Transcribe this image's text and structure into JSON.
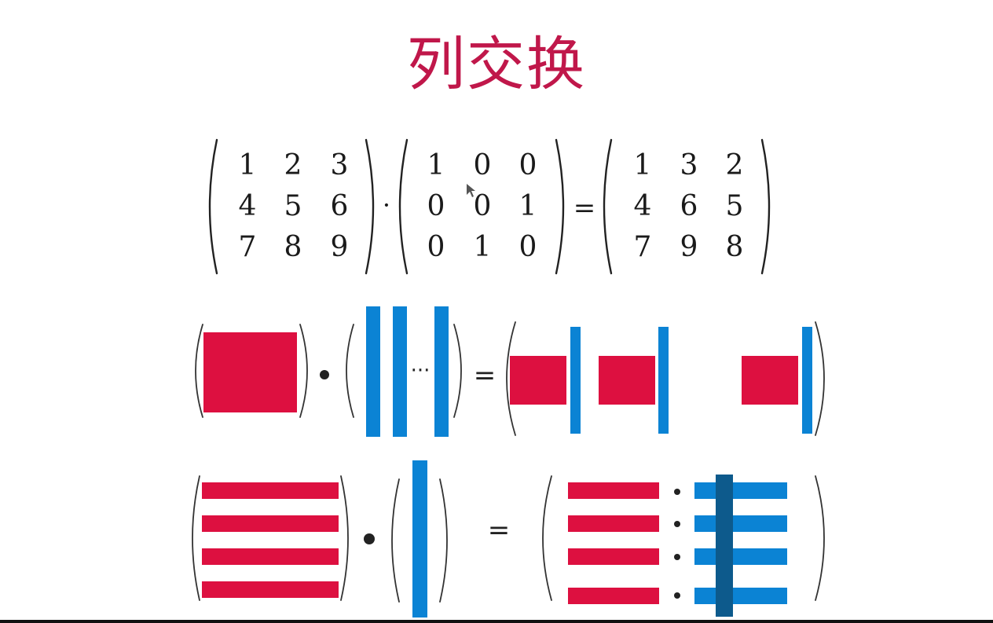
{
  "title": "列交换",
  "matrix_equation": {
    "matrix_a": [
      [
        "1",
        "2",
        "3"
      ],
      [
        "4",
        "5",
        "6"
      ],
      [
        "7",
        "8",
        "9"
      ]
    ],
    "dot_operator": "·",
    "matrix_p": [
      [
        "1",
        "0",
        "0"
      ],
      [
        "0",
        "0",
        "1"
      ],
      [
        "0",
        "1",
        "0"
      ]
    ],
    "equals": "=",
    "matrix_result": [
      [
        "1",
        "3",
        "2"
      ],
      [
        "4",
        "6",
        "5"
      ],
      [
        "7",
        "9",
        "8"
      ]
    ]
  },
  "block_diagram_1": {
    "dot_operator": "•",
    "ellipsis": "···",
    "equals": "="
  },
  "block_diagram_2": {
    "dot_operator": "•",
    "equals": "=",
    "product_dot": "•"
  },
  "colors": {
    "title": "#c0174a",
    "row_block": "#dd1040",
    "column_block": "#0b83d4",
    "overlay_column": "#0d5a8c"
  }
}
